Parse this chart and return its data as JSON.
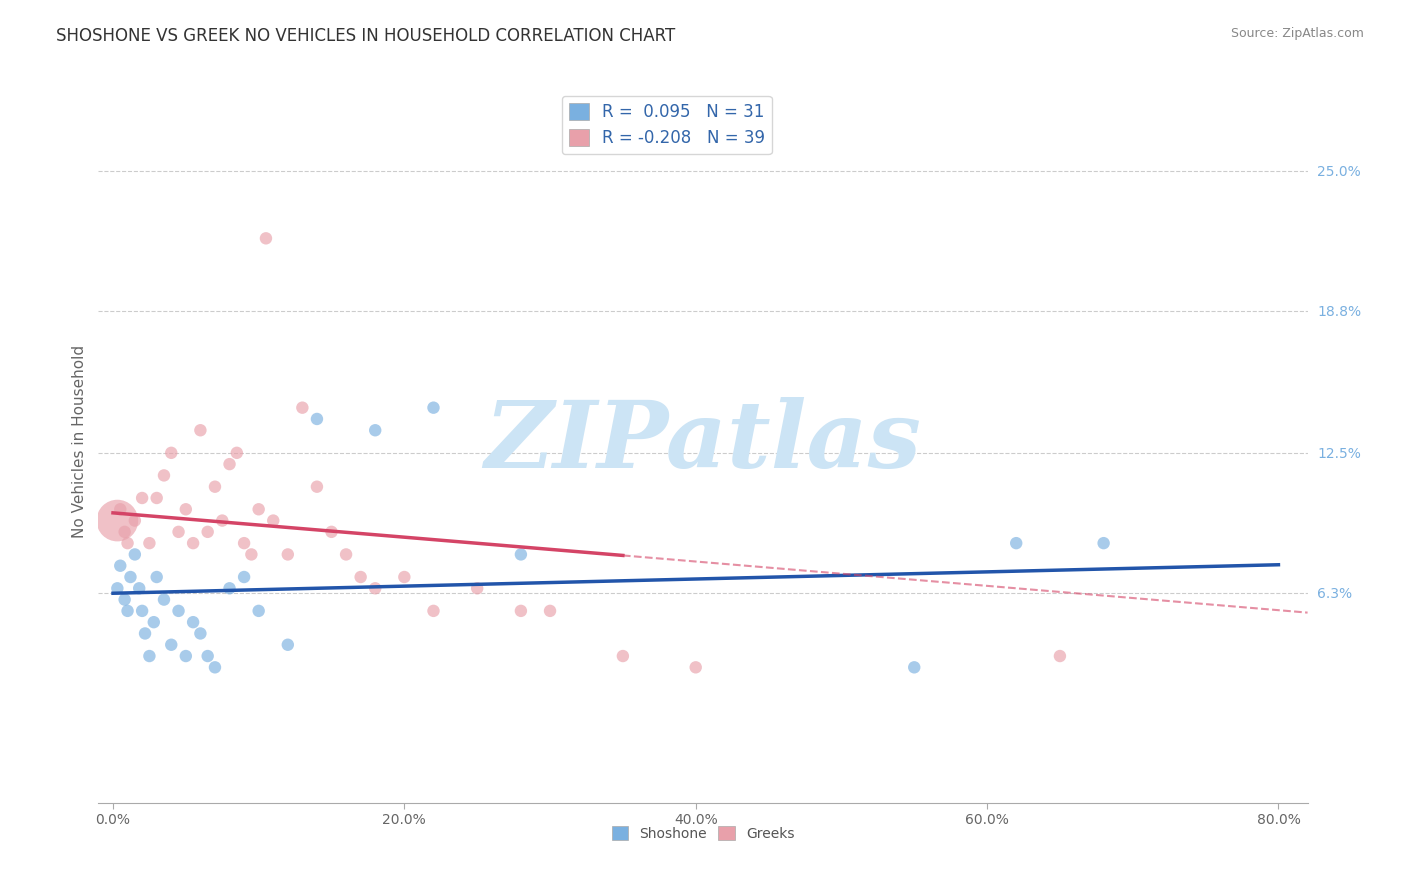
{
  "title": "SHOSHONE VS GREEK NO VEHICLES IN HOUSEHOLD CORRELATION CHART",
  "source": "Source: ZipAtlas.com",
  "ylabel": "No Vehicles in Household",
  "xlim": [
    -1.0,
    82.0
  ],
  "ylim": [
    -3.0,
    29.0
  ],
  "yticks": [
    6.3,
    12.5,
    18.8,
    25.0
  ],
  "ytick_labels": [
    "6.3%",
    "12.5%",
    "18.8%",
    "25.0%"
  ],
  "xticks": [
    0.0,
    20.0,
    40.0,
    60.0,
    80.0
  ],
  "xtick_labels": [
    "0.0%",
    "20.0%",
    "40.0%",
    "60.0%",
    "80.0%"
  ],
  "shoshone_color": "#7ab0e0",
  "greek_color": "#e8a0aa",
  "shoshone_r": 0.095,
  "shoshone_n": 31,
  "greek_r": -0.208,
  "greek_n": 39,
  "shoshone_line_color": "#2255aa",
  "greek_line_color": "#d44466",
  "shoshone_x": [
    0.3,
    0.5,
    0.8,
    1.0,
    1.2,
    1.5,
    1.8,
    2.0,
    2.2,
    2.5,
    2.8,
    3.0,
    3.5,
    4.0,
    4.5,
    5.0,
    5.5,
    6.0,
    6.5,
    7.0,
    8.0,
    9.0,
    10.0,
    12.0,
    14.0,
    18.0,
    22.0,
    28.0,
    55.0,
    62.0,
    68.0
  ],
  "shoshone_y": [
    6.5,
    7.5,
    6.0,
    5.5,
    7.0,
    8.0,
    6.5,
    5.5,
    4.5,
    3.5,
    5.0,
    7.0,
    6.0,
    4.0,
    5.5,
    3.5,
    5.0,
    4.5,
    3.5,
    3.0,
    6.5,
    7.0,
    5.5,
    4.0,
    14.0,
    13.5,
    14.5,
    8.0,
    3.0,
    8.5,
    8.5
  ],
  "greek_x": [
    0.3,
    0.5,
    0.8,
    1.0,
    1.5,
    2.0,
    2.5,
    3.0,
    3.5,
    4.0,
    4.5,
    5.0,
    5.5,
    6.0,
    6.5,
    7.0,
    7.5,
    8.0,
    8.5,
    9.0,
    9.5,
    10.0,
    10.5,
    11.0,
    12.0,
    13.0,
    14.0,
    15.0,
    16.0,
    17.0,
    18.0,
    20.0,
    22.0,
    25.0,
    28.0,
    30.0,
    35.0,
    40.0,
    65.0
  ],
  "greek_y": [
    9.5,
    10.0,
    9.0,
    8.5,
    9.5,
    10.5,
    8.5,
    10.5,
    11.5,
    12.5,
    9.0,
    10.0,
    8.5,
    13.5,
    9.0,
    11.0,
    9.5,
    12.0,
    12.5,
    8.5,
    8.0,
    10.0,
    22.0,
    9.5,
    8.0,
    14.5,
    11.0,
    9.0,
    8.0,
    7.0,
    6.5,
    7.0,
    5.5,
    6.5,
    5.5,
    5.5,
    3.5,
    3.0,
    3.5
  ],
  "shoshone_sizes": [
    80,
    80,
    80,
    80,
    80,
    80,
    80,
    80,
    80,
    80,
    80,
    80,
    80,
    80,
    80,
    80,
    80,
    80,
    80,
    80,
    80,
    80,
    80,
    80,
    80,
    80,
    80,
    80,
    80,
    80,
    80
  ],
  "greek_sizes": [
    900,
    80,
    80,
    80,
    80,
    80,
    80,
    80,
    80,
    80,
    80,
    80,
    80,
    80,
    80,
    80,
    80,
    80,
    80,
    80,
    80,
    80,
    80,
    80,
    80,
    80,
    80,
    80,
    80,
    80,
    80,
    80,
    80,
    80,
    80,
    80,
    80,
    80,
    80
  ],
  "background_color": "#ffffff",
  "grid_color": "#cccccc",
  "title_color": "#333333",
  "watermark_text": "ZIPatlas",
  "watermark_color": "#cce4f5",
  "legend_shoshone_label": "Shoshone",
  "legend_greek_label": "Greeks",
  "greek_solid_end": 35.0,
  "greek_dash_end": 82.0
}
